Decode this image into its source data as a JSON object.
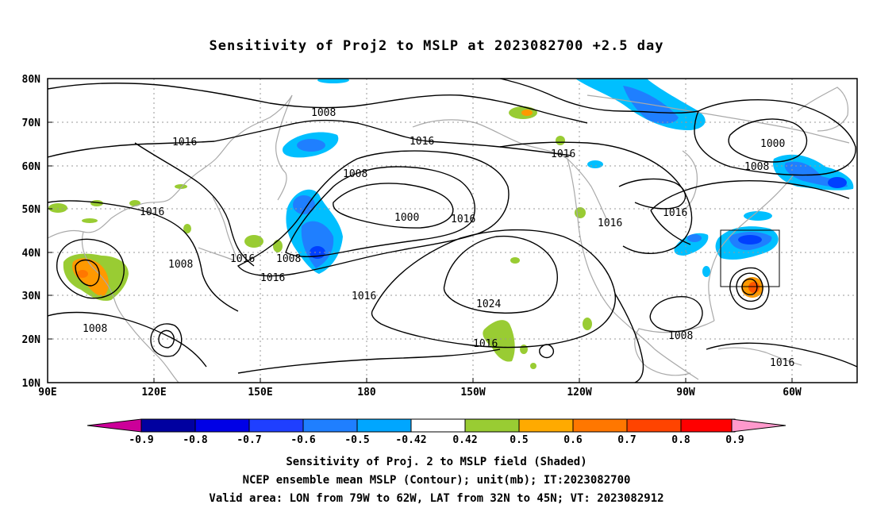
{
  "title": "Sensitivity of Proj2 to MSLP at 2023082700 +2.5 day",
  "map": {
    "lat_labels": [
      "80N",
      "70N",
      "60N",
      "50N",
      "40N",
      "30N",
      "20N",
      "10N"
    ],
    "lon_labels": [
      "90E",
      "120E",
      "150E",
      "180",
      "150W",
      "120W",
      "90W",
      "60W"
    ],
    "contour_labels": [
      "1008",
      "1016",
      "1000",
      "1024"
    ],
    "colors": {
      "neg_light": "#00bfff",
      "neg_mid": "#1f7fff",
      "neg_dark": "#0040ff",
      "pos_green": "#99cc33",
      "pos_orange": "#ff9900",
      "contour": "#000000",
      "coast": "#a9a9a9",
      "grid": "#999999"
    }
  },
  "colorbar": {
    "labels": [
      "-0.9",
      "-0.8",
      "-0.7",
      "-0.6",
      "-0.5",
      "-0.42",
      "0.42",
      "0.5",
      "0.6",
      "0.7",
      "0.8",
      "0.9"
    ],
    "colors": [
      "#0000a0",
      "#0000e6",
      "#1f3fff",
      "#1f7fff",
      "#00a6ff",
      "#00cfff",
      "#ffffff",
      "#99cc33",
      "#ffaa00",
      "#ff7700",
      "#ff4400",
      "#ff0000"
    ],
    "low_end_color": "#cc0099",
    "high_end_color": "#ff99cc"
  },
  "caption": {
    "line1": "Sensitivity of Proj. 2 to MSLP field (Shaded)",
    "line2": "NCEP ensemble mean MSLP (Contour); unit(mb); IT:2023082700",
    "line3": "Valid area: LON from 79W to 62W, LAT from 32N to 45N; VT: 2023082912"
  }
}
